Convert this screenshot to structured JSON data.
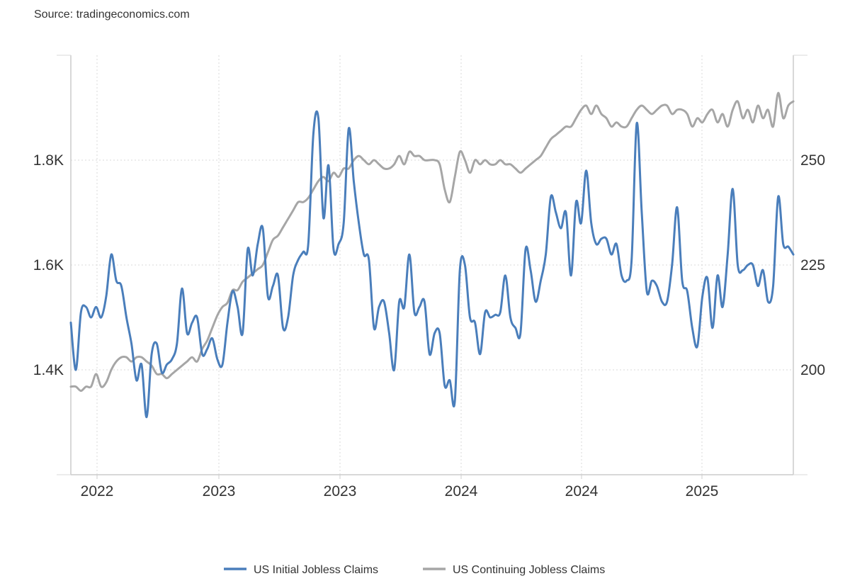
{
  "source_text": "Source: tradingeconomics.com",
  "chart_data": {
    "type": "line",
    "grid": true,
    "legend_position": "bottom-center",
    "x_ticks": [
      "2022",
      "2023",
      "2023",
      "2024",
      "2024",
      "2025"
    ],
    "y_left": {
      "ticks": [
        1400,
        1600,
        1800
      ],
      "tick_labels": [
        "1.4K",
        "1.6K",
        "1.8K"
      ],
      "range": [
        1200,
        2000
      ]
    },
    "y_right": {
      "ticks": [
        200,
        225,
        250
      ],
      "tick_labels": [
        "200",
        "225",
        "250"
      ],
      "range": [
        175,
        275
      ]
    },
    "series": [
      {
        "name": "US Initial Jobless Claims",
        "axis": "left",
        "color": "#4a7ebb",
        "values": [
          1490,
          1400,
          1510,
          1520,
          1500,
          1520,
          1500,
          1540,
          1620,
          1570,
          1560,
          1500,
          1450,
          1380,
          1410,
          1310,
          1430,
          1450,
          1395,
          1410,
          1420,
          1450,
          1555,
          1470,
          1490,
          1500,
          1430,
          1440,
          1460,
          1420,
          1410,
          1490,
          1550,
          1520,
          1470,
          1630,
          1580,
          1640,
          1670,
          1540,
          1560,
          1580,
          1480,
          1500,
          1580,
          1610,
          1625,
          1640,
          1850,
          1880,
          1690,
          1790,
          1630,
          1640,
          1680,
          1860,
          1760,
          1680,
          1620,
          1610,
          1480,
          1520,
          1530,
          1470,
          1400,
          1530,
          1520,
          1620,
          1510,
          1520,
          1530,
          1430,
          1470,
          1470,
          1370,
          1380,
          1340,
          1590,
          1600,
          1500,
          1490,
          1430,
          1510,
          1500,
          1505,
          1510,
          1580,
          1500,
          1480,
          1470,
          1630,
          1590,
          1530,
          1570,
          1620,
          1730,
          1700,
          1670,
          1700,
          1580,
          1720,
          1680,
          1780,
          1680,
          1640,
          1650,
          1650,
          1620,
          1640,
          1580,
          1570,
          1610,
          1870,
          1700,
          1550,
          1570,
          1560,
          1530,
          1530,
          1600,
          1710,
          1570,
          1550,
          1480,
          1445,
          1540,
          1575,
          1480,
          1580,
          1520,
          1620,
          1745,
          1600,
          1590,
          1600,
          1600,
          1560,
          1590,
          1530,
          1560,
          1730,
          1640,
          1635,
          1620
        ]
      },
      {
        "name": "US Continuing Jobless Claims",
        "axis": "right",
        "color": "#a6a6a6",
        "values": [
          196,
          196,
          195,
          196,
          196,
          199,
          196,
          197,
          200,
          202,
          203,
          203,
          202,
          203,
          203,
          202,
          201,
          199,
          199,
          198,
          199,
          200,
          201,
          202,
          203,
          202,
          205,
          207,
          210,
          213,
          215,
          216,
          219,
          219,
          221,
          222,
          223,
          224,
          225,
          228,
          231,
          232,
          234,
          236,
          238,
          240,
          240,
          241,
          243,
          245,
          246,
          245,
          247,
          246,
          248,
          248,
          250,
          251,
          250,
          249,
          250,
          249,
          248,
          248,
          249,
          251,
          249,
          252,
          251,
          251,
          250,
          250,
          250,
          249,
          243,
          240,
          246,
          252,
          250,
          247,
          250,
          249,
          250,
          249,
          249,
          250,
          249,
          249,
          248,
          247,
          248,
          249,
          250,
          251,
          253,
          255,
          256,
          257,
          258,
          258,
          260,
          262,
          263,
          261,
          263,
          261,
          260,
          258,
          259,
          258,
          258,
          260,
          262,
          263,
          262,
          261,
          262,
          263,
          263,
          261,
          262,
          262,
          261,
          258,
          260,
          259,
          261,
          262,
          259,
          261,
          258,
          262,
          264,
          260,
          262,
          259,
          263,
          260,
          262,
          258,
          266,
          260,
          263,
          264
        ]
      }
    ]
  }
}
